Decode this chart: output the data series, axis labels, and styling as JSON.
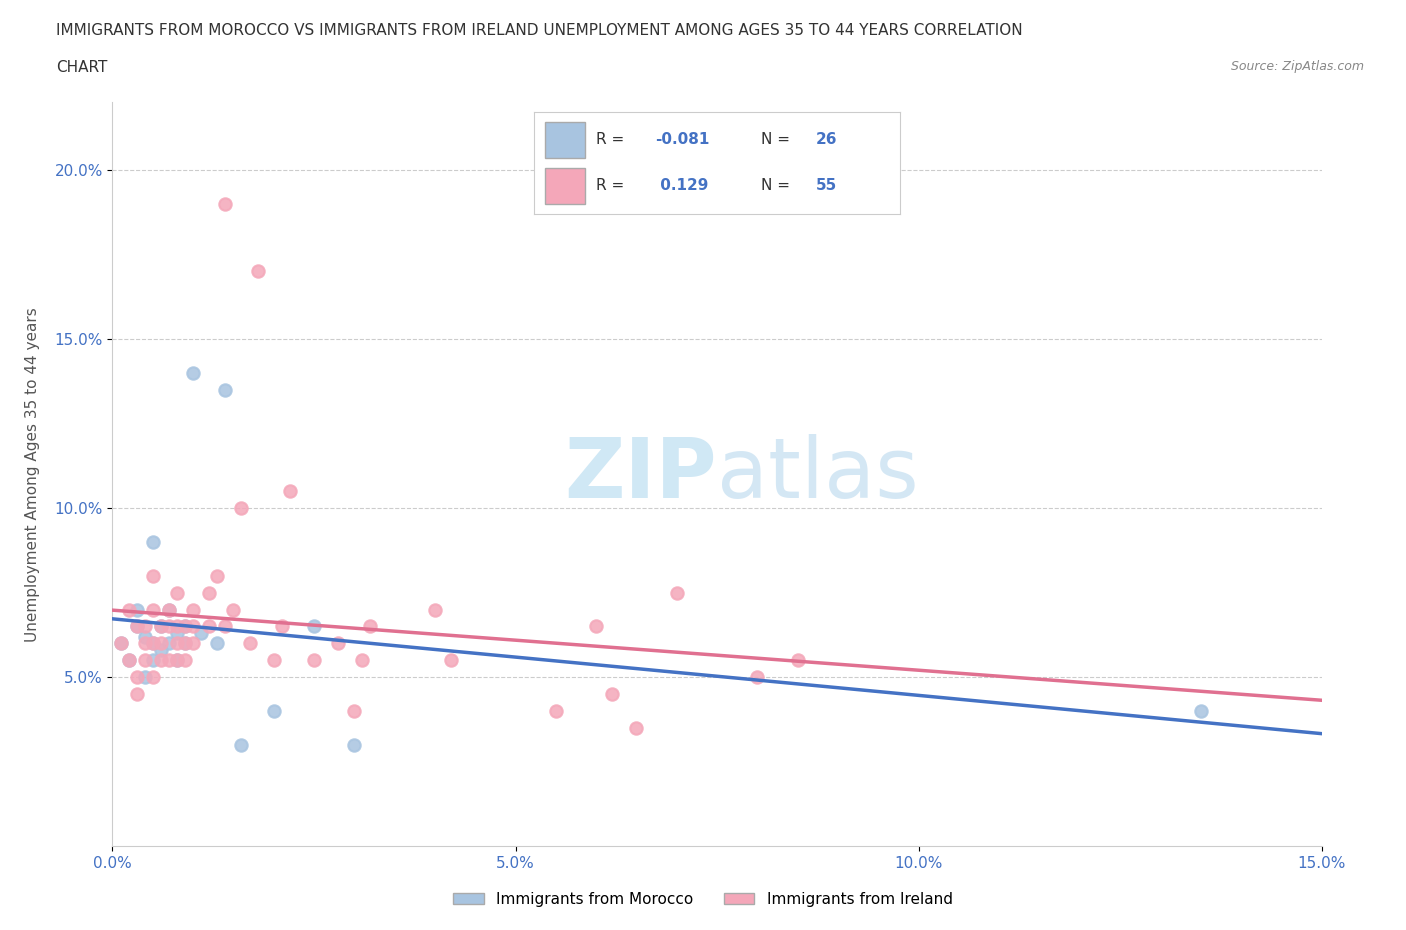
{
  "title_line1": "IMMIGRANTS FROM MOROCCO VS IMMIGRANTS FROM IRELAND UNEMPLOYMENT AMONG AGES 35 TO 44 YEARS CORRELATION",
  "title_line2": "CHART",
  "source_text": "Source: ZipAtlas.com",
  "ylabel": "Unemployment Among Ages 35 to 44 years",
  "xlim": [
    0,
    0.15
  ],
  "ylim": [
    0,
    0.22
  ],
  "xticks": [
    0.0,
    0.05,
    0.1,
    0.15
  ],
  "yticks": [
    0.05,
    0.1,
    0.15,
    0.2
  ],
  "xtick_labels": [
    "0.0%",
    "5.0%",
    "10.0%",
    "15.0%"
  ],
  "ytick_labels": [
    "5.0%",
    "10.0%",
    "15.0%",
    "20.0%"
  ],
  "morocco_color": "#a8c4e0",
  "ireland_color": "#f4a7b9",
  "morocco_line_color": "#4472c4",
  "ireland_line_color": "#e07090",
  "morocco_R": "-0.081",
  "morocco_N": "26",
  "ireland_R": "0.129",
  "ireland_N": "55",
  "morocco_x": [
    0.001,
    0.002,
    0.003,
    0.003,
    0.004,
    0.004,
    0.005,
    0.005,
    0.005,
    0.006,
    0.006,
    0.007,
    0.007,
    0.008,
    0.008,
    0.009,
    0.009,
    0.01,
    0.011,
    0.013,
    0.014,
    0.016,
    0.02,
    0.025,
    0.03,
    0.135
  ],
  "morocco_y": [
    0.06,
    0.055,
    0.065,
    0.07,
    0.05,
    0.062,
    0.09,
    0.06,
    0.055,
    0.065,
    0.058,
    0.06,
    0.07,
    0.063,
    0.055,
    0.065,
    0.06,
    0.14,
    0.063,
    0.06,
    0.135,
    0.03,
    0.04,
    0.065,
    0.03,
    0.04
  ],
  "ireland_x": [
    0.001,
    0.002,
    0.002,
    0.003,
    0.003,
    0.003,
    0.004,
    0.004,
    0.004,
    0.005,
    0.005,
    0.005,
    0.005,
    0.006,
    0.006,
    0.006,
    0.007,
    0.007,
    0.007,
    0.008,
    0.008,
    0.008,
    0.008,
    0.009,
    0.009,
    0.009,
    0.01,
    0.01,
    0.01,
    0.012,
    0.012,
    0.013,
    0.014,
    0.014,
    0.015,
    0.016,
    0.017,
    0.018,
    0.02,
    0.021,
    0.022,
    0.025,
    0.028,
    0.03,
    0.031,
    0.032,
    0.04,
    0.042,
    0.055,
    0.06,
    0.062,
    0.065,
    0.07,
    0.08,
    0.085
  ],
  "ireland_y": [
    0.06,
    0.055,
    0.07,
    0.05,
    0.065,
    0.045,
    0.065,
    0.06,
    0.055,
    0.06,
    0.05,
    0.07,
    0.08,
    0.055,
    0.065,
    0.06,
    0.055,
    0.065,
    0.07,
    0.06,
    0.065,
    0.055,
    0.075,
    0.065,
    0.06,
    0.055,
    0.065,
    0.07,
    0.06,
    0.065,
    0.075,
    0.08,
    0.19,
    0.065,
    0.07,
    0.1,
    0.06,
    0.17,
    0.055,
    0.065,
    0.105,
    0.055,
    0.06,
    0.04,
    0.055,
    0.065,
    0.07,
    0.055,
    0.04,
    0.065,
    0.045,
    0.035,
    0.075,
    0.05,
    0.055
  ],
  "watermark_zip": "ZIP",
  "watermark_atlas": "atlas",
  "watermark_color": "#d0e8f5",
  "background_color": "#ffffff",
  "grid_color": "#cccccc",
  "tick_color": "#4472c4",
  "label_color": "#555555",
  "legend_morocco": "Immigrants from Morocco",
  "legend_ireland": "Immigrants from Ireland"
}
